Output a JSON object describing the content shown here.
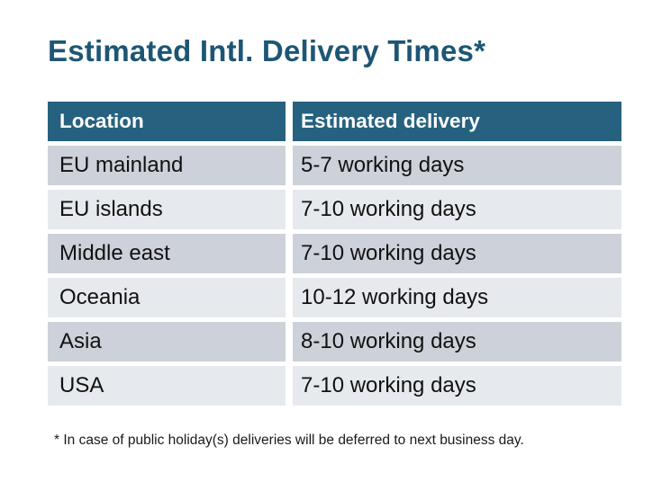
{
  "page": {
    "title": "Estimated Intl. Delivery Times*"
  },
  "table": {
    "headers": [
      "Location",
      "Estimated delivery"
    ],
    "rows": [
      {
        "location": "EU mainland",
        "delivery": "5-7 working days"
      },
      {
        "location": "EU islands",
        "delivery": "7-10 working days"
      },
      {
        "location": "Middle east",
        "delivery": "7-10 working days"
      },
      {
        "location": "Oceania",
        "delivery": "10-12 working days"
      },
      {
        "location": "Asia",
        "delivery": "8-10 working days"
      },
      {
        "location": "USA",
        "delivery": "7-10 working days"
      }
    ]
  },
  "footnote": "* In case of public holiday(s) deliveries will be deferred to next business day.",
  "colors": {
    "title_color": "#1d5674",
    "header_bg": "#26617f",
    "header_text": "#ffffff",
    "row_dark": "#cdd1d9",
    "row_light": "#e6e9ed",
    "body_text": "#111111"
  }
}
